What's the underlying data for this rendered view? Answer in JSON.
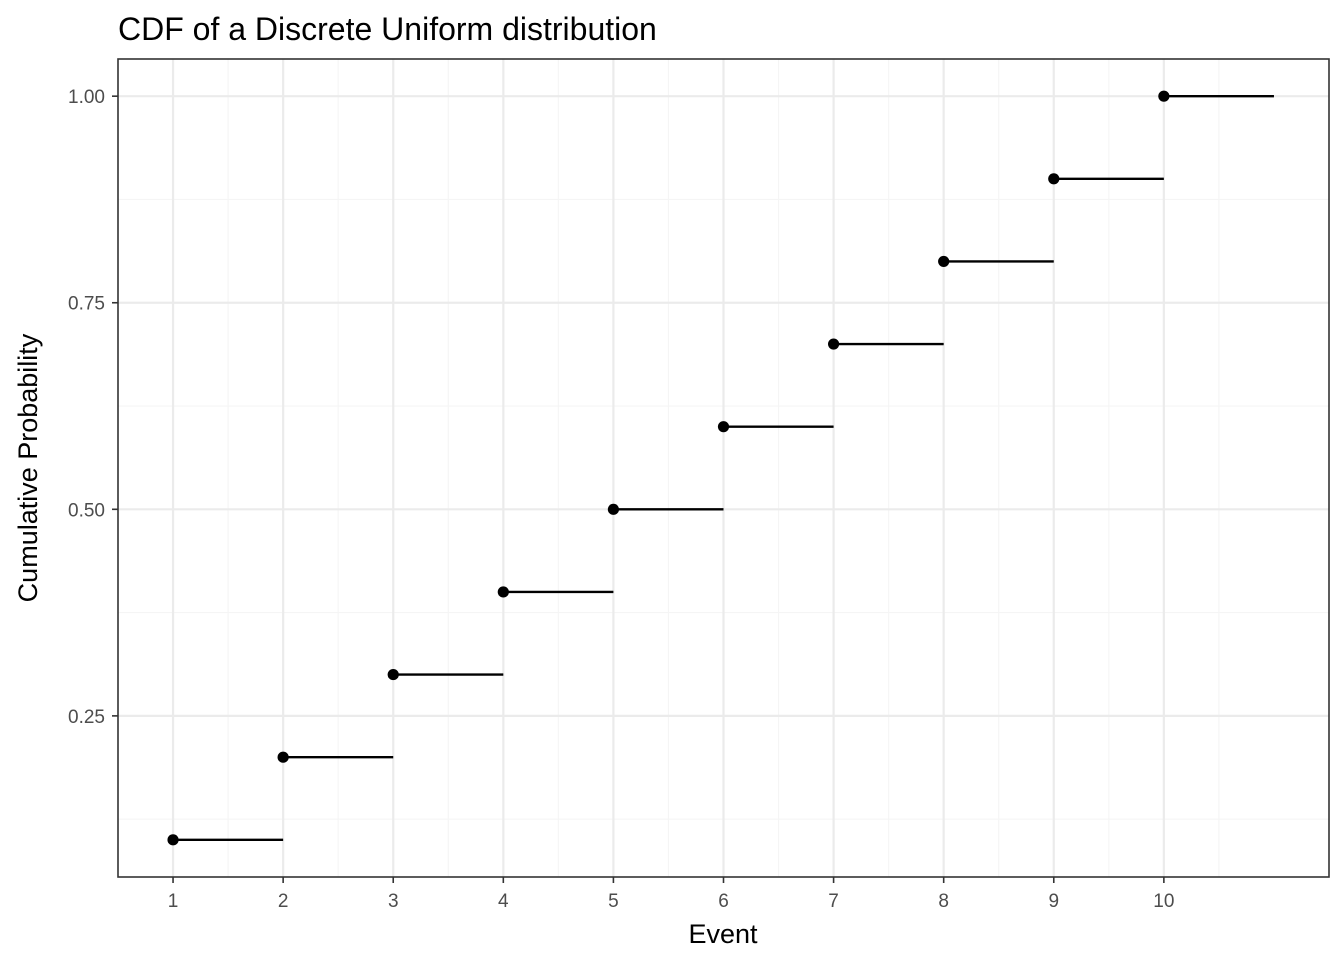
{
  "chart_data": {
    "type": "step",
    "title": "CDF of a Discrete Uniform distribution",
    "xlabel": "Event",
    "ylabel": "Cumulative Probability",
    "x_ticks": [
      "1",
      "2",
      "3",
      "4",
      "5",
      "6",
      "7",
      "8",
      "9",
      "10"
    ],
    "y_ticks": [
      "0.25",
      "0.50",
      "0.75",
      "1.00"
    ],
    "xlim": [
      0.5,
      11.5
    ],
    "ylim": [
      0.055,
      1.045
    ],
    "grid": true,
    "series": [
      {
        "x": [
          1,
          2,
          3,
          4,
          5,
          6,
          7,
          8,
          9,
          10
        ],
        "y": [
          0.1,
          0.2,
          0.3,
          0.4,
          0.5,
          0.6,
          0.7,
          0.8,
          0.9,
          1.0
        ],
        "x_end": [
          2,
          3,
          4,
          5,
          6,
          7,
          8,
          9,
          10,
          11
        ]
      }
    ],
    "colors": {
      "panel_border": "#333333",
      "grid_major": "#ebebeb",
      "grid_minor": "#f5f5f5",
      "mark": "#000000",
      "tick_label": "#4d4d4d"
    }
  }
}
